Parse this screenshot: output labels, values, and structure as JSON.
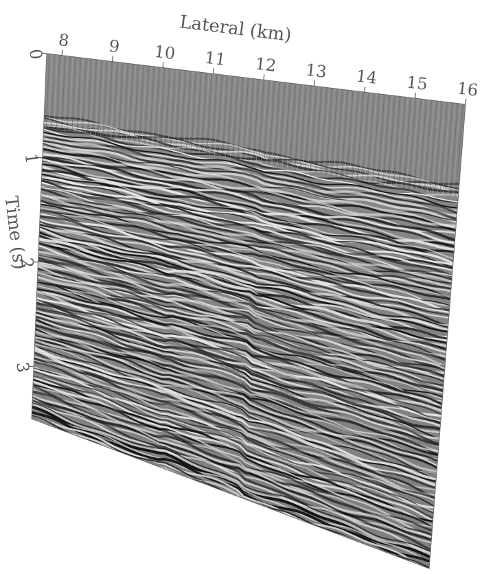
{
  "chart_data": {
    "type": "heatmap",
    "title": "",
    "xlabel": "Lateral (km)",
    "ylabel": "Time (s)",
    "x_ticks": [
      8,
      9,
      10,
      11,
      12,
      13,
      14,
      15,
      16
    ],
    "y_ticks": [
      0,
      1,
      2,
      3
    ],
    "xlim": [
      7.7,
      16.0
    ],
    "ylim": [
      0,
      3.5
    ],
    "colormap": "grayscale",
    "description_values": "seismic amplitude section (wiggle reflectors)"
  },
  "colors": {
    "text": "#5a5a5a",
    "tick": "#555555",
    "panel_base": "#8a8a8a"
  }
}
